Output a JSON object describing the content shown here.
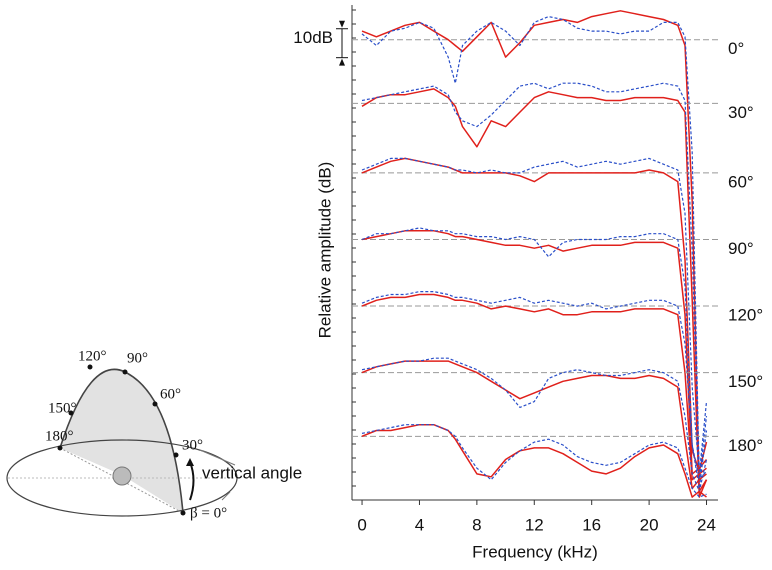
{
  "chart_data": {
    "type": "line",
    "x_label": "Frequency (kHz)",
    "y_label": "Relative amplitude (dB)",
    "x": [
      0,
      1,
      2,
      3,
      4,
      5,
      6,
      6.5,
      7,
      8,
      9,
      10,
      11,
      12,
      13,
      14,
      15,
      16,
      17,
      18,
      19,
      20,
      21,
      22,
      22.5,
      23,
      23.5,
      24
    ],
    "xlim": [
      -0.7,
      24.8
    ],
    "xticks": [
      0,
      4,
      8,
      12,
      16,
      20,
      24
    ],
    "ylim": [
      -159,
      12
    ],
    "scale_bar": {
      "value": 10,
      "label": "10dB"
    },
    "panels": [
      {
        "label": "0°",
        "reference": 0,
        "series": [
          {
            "color": "#e0201b",
            "dashed": false,
            "values": [
              3,
              1,
              3,
              5,
              6,
              3,
              0,
              -2,
              -4,
              1,
              6,
              -6,
              -1,
              5,
              6,
              7,
              6,
              8,
              9,
              10,
              9,
              8,
              7,
              5,
              -2,
              -56,
              -156,
              -152
            ]
          },
          {
            "color": "#2a4fc9",
            "dashed": true,
            "values": [
              2,
              -2,
              3,
              4,
              6,
              4,
              -6,
              -15,
              -2,
              3,
              6,
              3,
              -2,
              6,
              8,
              7,
              4,
              3,
              3,
              2,
              3,
              3,
              6,
              6,
              1,
              -39,
              -152,
              -149
            ]
          }
        ]
      },
      {
        "label": "30°",
        "reference": -22,
        "series": [
          {
            "color": "#e0201b",
            "dashed": false,
            "values": [
              -23,
              -20,
              -19,
              -19,
              -18,
              -17,
              -20,
              -23,
              -30,
              -37,
              -28,
              -30,
              -25,
              -20,
              -18,
              -19,
              -20,
              -20,
              -21,
              -21,
              -20,
              -20,
              -20,
              -21,
              -25,
              -90,
              -158,
              -152
            ]
          },
          {
            "color": "#2a4fc9",
            "dashed": true,
            "values": [
              -21,
              -20,
              -19,
              -18,
              -17,
              -16,
              -19,
              -25,
              -28,
              -30,
              -26,
              -21,
              -16,
              -15,
              -17,
              -15,
              -15,
              -16,
              -18,
              -18,
              -17,
              -16,
              -15,
              -16,
              -21,
              -73,
              -152,
              -149
            ]
          }
        ]
      },
      {
        "label": "60°",
        "reference": -46,
        "series": [
          {
            "color": "#e0201b",
            "dashed": false,
            "values": [
              -46,
              -44,
              -42,
              -41,
              -42,
              -43,
              -44,
              -45,
              -46,
              -46,
              -46,
              -46,
              -47,
              -49,
              -46,
              -46,
              -46,
              -46,
              -46,
              -46,
              -46,
              -45,
              -46,
              -49,
              -76,
              -142,
              -149,
              -139
            ]
          },
          {
            "color": "#2a4fc9",
            "dashed": true,
            "values": [
              -45,
              -43,
              -41,
              -41,
              -42,
              -43,
              -44,
              -45,
              -45,
              -46,
              -45,
              -46,
              -46,
              -44,
              -43,
              -42,
              -44,
              -43,
              -42,
              -43,
              -42,
              -41,
              -43,
              -45,
              -60,
              -120,
              -150,
              -125
            ]
          }
        ]
      },
      {
        "label": "90°",
        "reference": -69,
        "series": [
          {
            "color": "#e0201b",
            "dashed": false,
            "values": [
              -69,
              -68,
              -67,
              -66,
              -66,
              -66,
              -67,
              -68,
              -68,
              -69,
              -70,
              -71,
              -71,
              -72,
              -71,
              -73,
              -72,
              -71,
              -71,
              -71,
              -70,
              -70,
              -70,
              -72,
              -95,
              -150,
              -148,
              -145
            ]
          },
          {
            "color": "#2a4fc9",
            "dashed": true,
            "values": [
              -69,
              -67,
              -67,
              -66,
              -65,
              -66,
              -66,
              -67,
              -67,
              -68,
              -68,
              -69,
              -68,
              -69,
              -75,
              -70,
              -69,
              -69,
              -69,
              -68,
              -68,
              -67,
              -67,
              -69,
              -85,
              -140,
              -152,
              -130
            ]
          }
        ]
      },
      {
        "label": "120°",
        "reference": -92,
        "series": [
          {
            "color": "#e0201b",
            "dashed": false,
            "values": [
              -92,
              -90,
              -89,
              -89,
              -88,
              -88,
              -89,
              -90,
              -90,
              -91,
              -93,
              -92,
              -93,
              -94,
              -93,
              -95,
              -95,
              -94,
              -94,
              -94,
              -93,
              -93,
              -93,
              -95,
              -115,
              -152,
              -150,
              -148
            ]
          },
          {
            "color": "#2a4fc9",
            "dashed": true,
            "values": [
              -91,
              -89,
              -88,
              -88,
              -87,
              -87,
              -88,
              -89,
              -89,
              -90,
              -91,
              -90,
              -89,
              -91,
              -90,
              -91,
              -92,
              -91,
              -93,
              -92,
              -91,
              -90,
              -90,
              -92,
              -105,
              -140,
              -155,
              -135
            ]
          }
        ]
      },
      {
        "label": "150°",
        "reference": -115,
        "series": [
          {
            "color": "#e0201b",
            "dashed": false,
            "values": [
              -115,
              -113,
              -112,
              -111,
              -111,
              -111,
              -111,
              -112,
              -113,
              -115,
              -118,
              -121,
              -124,
              -122,
              -120,
              -118,
              -117,
              -116,
              -116,
              -117,
              -117,
              -116,
              -117,
              -120,
              -138,
              -155,
              -152,
              -150
            ]
          },
          {
            "color": "#2a4fc9",
            "dashed": true,
            "values": [
              -114,
              -113,
              -112,
              -111,
              -111,
              -110,
              -110,
              -111,
              -112,
              -114,
              -117,
              -121,
              -127,
              -125,
              -117,
              -115,
              -114,
              -115,
              -116,
              -116,
              -115,
              -114,
              -115,
              -118,
              -130,
              -150,
              -156,
              -145
            ]
          }
        ]
      },
      {
        "label": "180°",
        "reference": -137,
        "series": [
          {
            "color": "#e0201b",
            "dashed": false,
            "values": [
              -137,
              -135,
              -135,
              -134,
              -133,
              -133,
              -135,
              -138,
              -142,
              -150,
              -151,
              -145,
              -142,
              -141,
              -141,
              -143,
              -146,
              -149,
              -150,
              -148,
              -144,
              -141,
              -140,
              -143,
              -150,
              -158,
              -156,
              -158
            ]
          },
          {
            "color": "#2a4fc9",
            "dashed": true,
            "values": [
              -136,
              -135,
              -134,
              -133,
              -133,
              -133,
              -135,
              -137,
              -141,
              -148,
              -152,
              -146,
              -142,
              -139,
              -138,
              -140,
              -144,
              -146,
              -147,
              -146,
              -143,
              -140,
              -139,
              -141,
              -148,
              -155,
              -158,
              -157
            ]
          }
        ]
      }
    ]
  },
  "inset": {
    "labels": [
      "120°",
      "90°",
      "60°",
      "150°",
      "180°",
      "30°",
      "vertical angle",
      "β = 0°"
    ]
  }
}
